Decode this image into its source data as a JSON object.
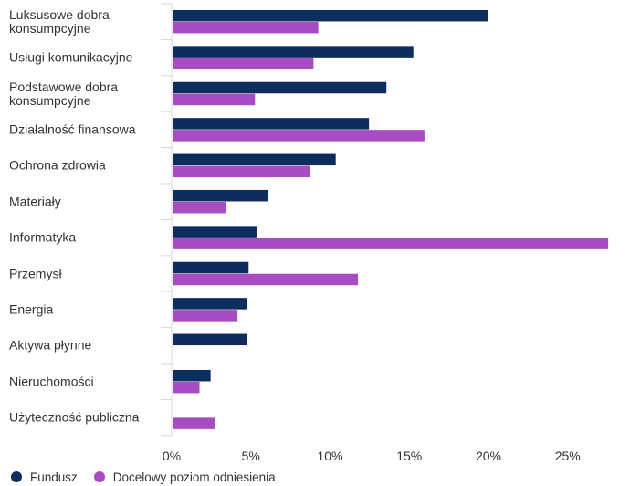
{
  "chart_data": {
    "type": "bar",
    "orientation": "horizontal",
    "categories": [
      "Luksusowe dobra konsumpcyjne",
      "Usługi komunikacyjne",
      "Podstawowe dobra konsumpcyjne",
      "Działalność finansowa",
      "Ochrona zdrowia",
      "Materiały",
      "Informatyka",
      "Przemysł",
      "Energia",
      "Aktywa płynne",
      "Nieruchomości",
      "Użyteczność publiczna"
    ],
    "series": [
      {
        "name": "Fundusz",
        "color": "#0d2d5e",
        "values": [
          19.9,
          15.2,
          13.5,
          12.4,
          10.3,
          6.0,
          5.3,
          4.8,
          4.7,
          4.7,
          2.4,
          0.0
        ]
      },
      {
        "name": "Docelowy poziom odniesienia",
        "color": "#a94cc4",
        "values": [
          9.2,
          8.9,
          5.2,
          15.9,
          8.7,
          3.4,
          27.5,
          11.7,
          4.1,
          0.0,
          1.7,
          2.7
        ]
      }
    ],
    "xlim": [
      0,
      30
    ],
    "xticks": [
      0,
      5,
      10,
      15,
      20,
      25
    ],
    "xtick_labels": [
      "0%",
      "5%",
      "10%",
      "15%",
      "20%",
      "25%"
    ],
    "legend_position": "bottom-left",
    "grid": false
  }
}
